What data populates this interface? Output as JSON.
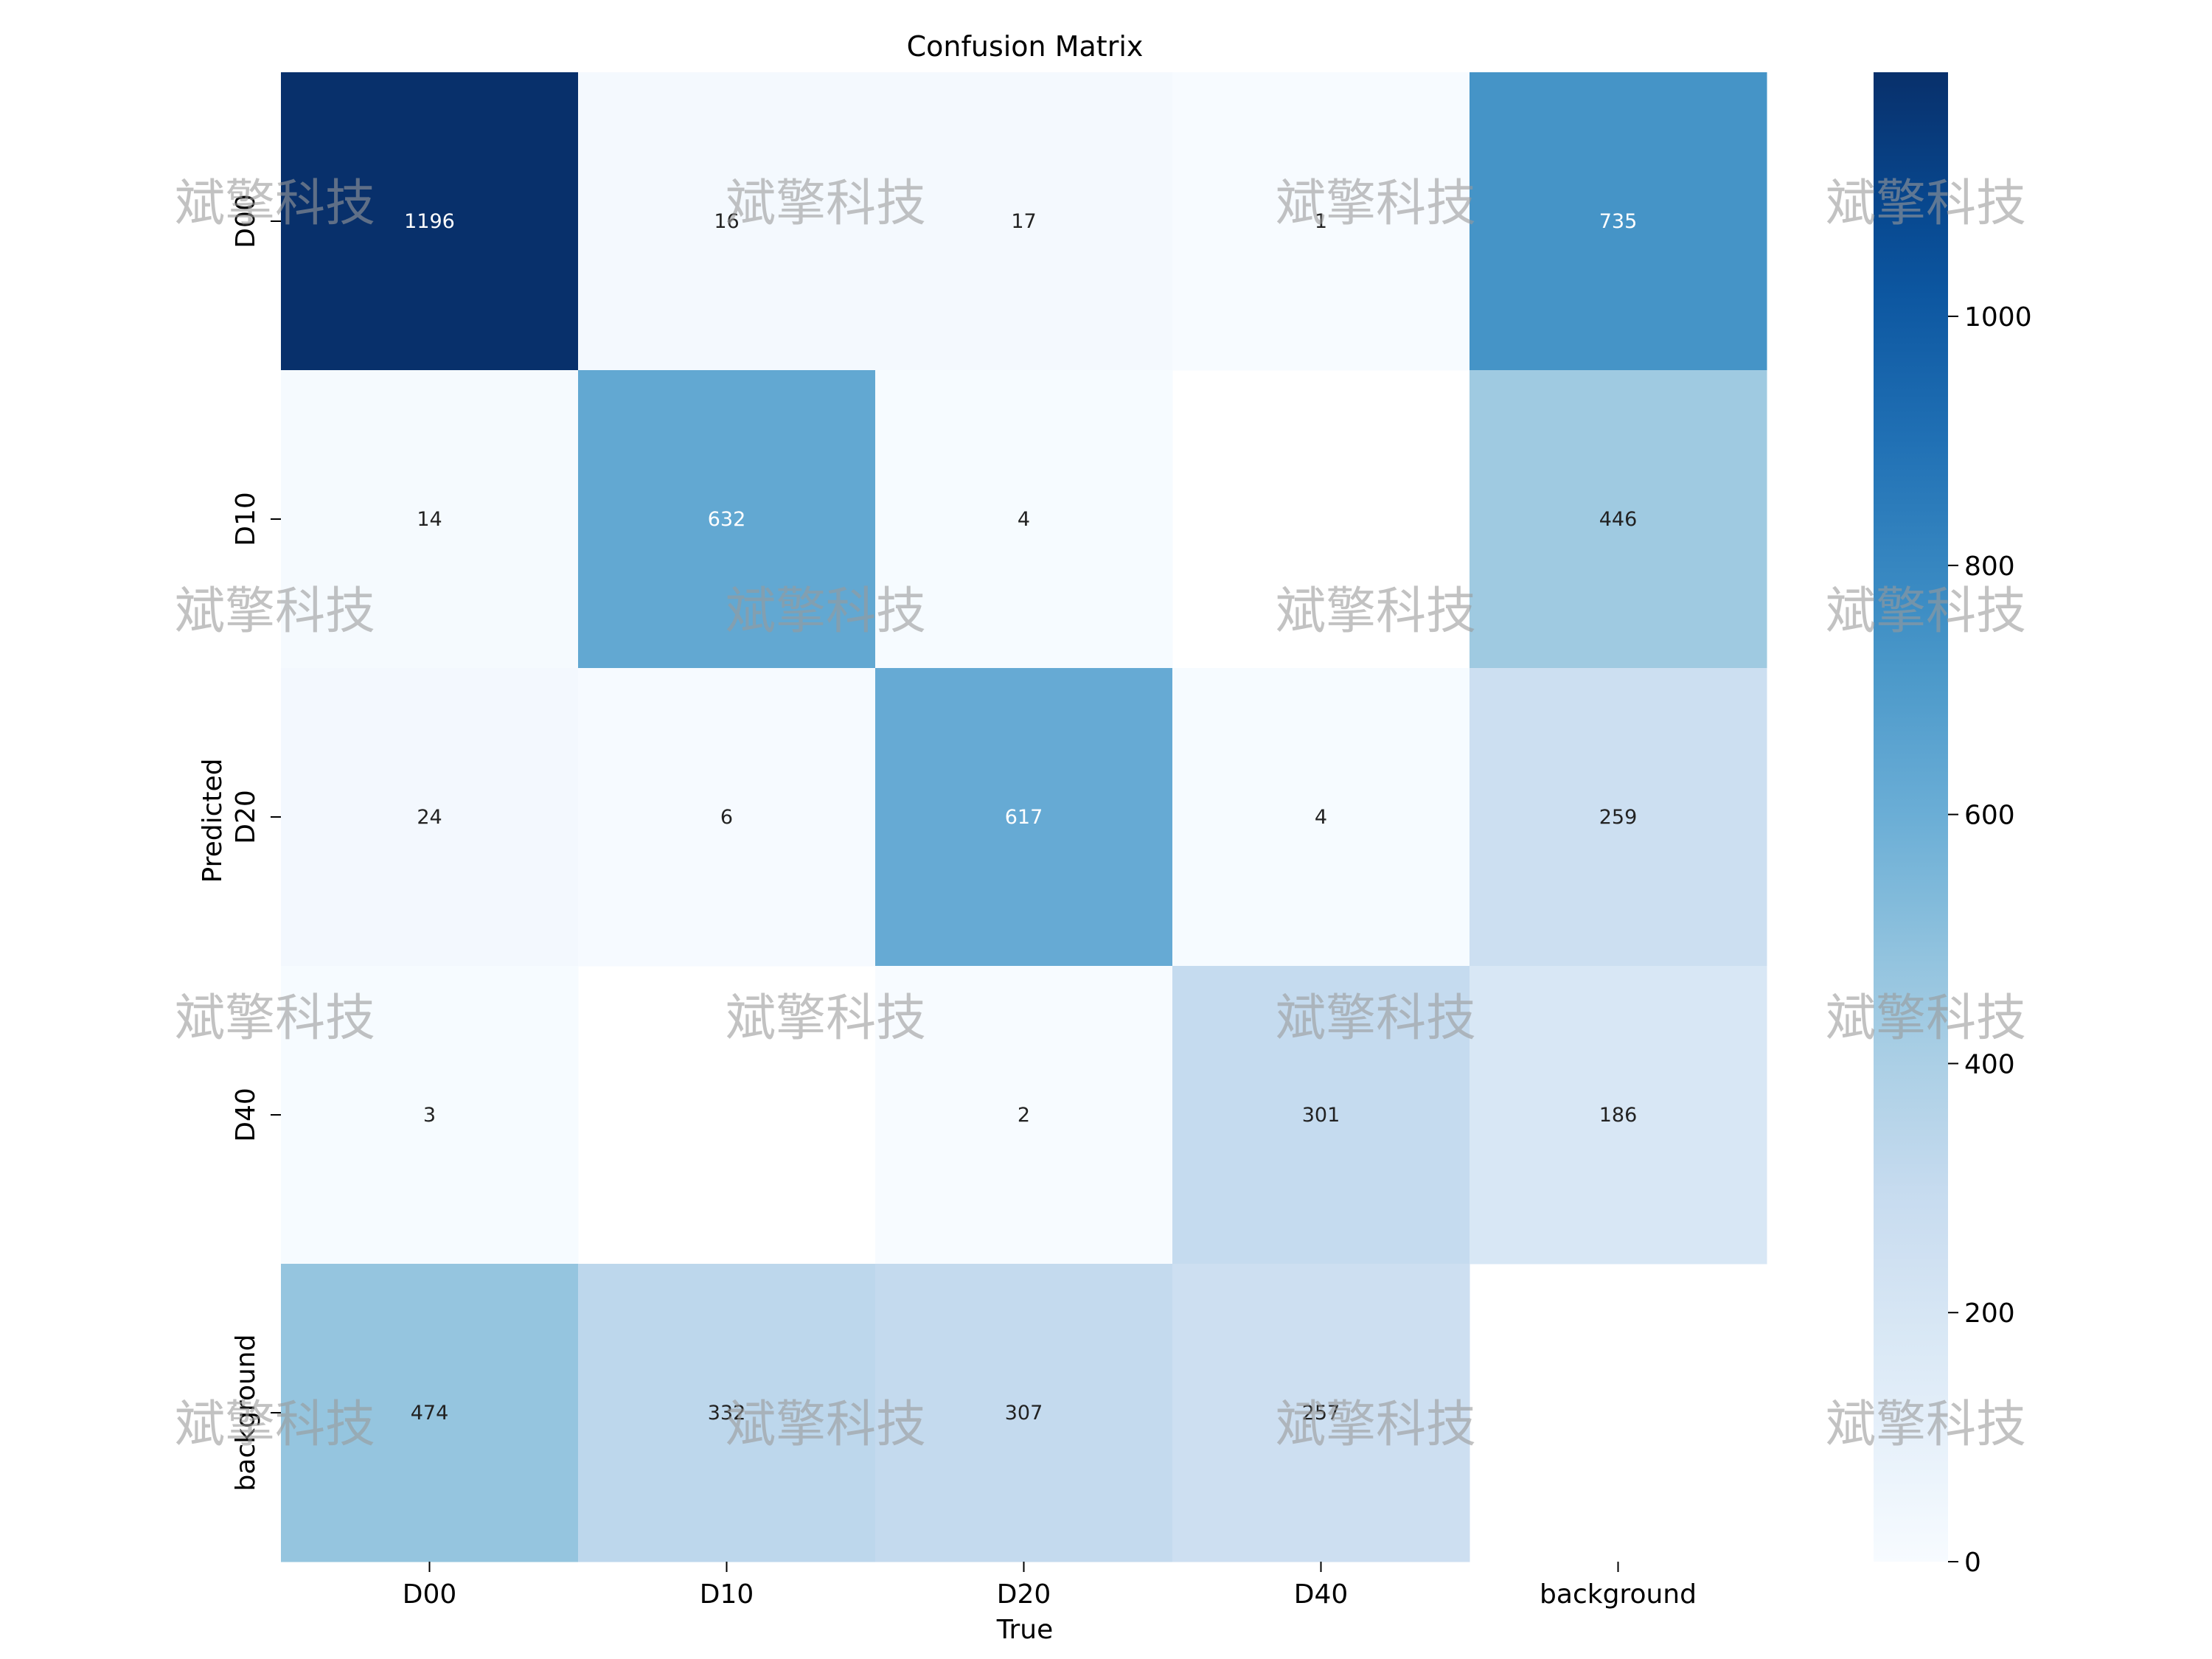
{
  "chart_data": {
    "type": "heatmap",
    "title": "Confusion Matrix",
    "xlabel": "True",
    "ylabel": "Predicted",
    "x_categories": [
      "D00",
      "D10",
      "D20",
      "D40",
      "background"
    ],
    "y_categories": [
      "D00",
      "D10",
      "D20",
      "D40",
      "background"
    ],
    "values": [
      [
        1196,
        16,
        17,
        1,
        735
      ],
      [
        14,
        632,
        4,
        null,
        446
      ],
      [
        24,
        6,
        617,
        4,
        259
      ],
      [
        3,
        null,
        2,
        301,
        186
      ],
      [
        474,
        332,
        307,
        257,
        null
      ]
    ],
    "colormap": "Blues",
    "color_range": [
      0,
      1196
    ],
    "colorbar_ticks": [
      0,
      200,
      400,
      600,
      800,
      1000
    ]
  },
  "watermark_text": "斌擎科技"
}
